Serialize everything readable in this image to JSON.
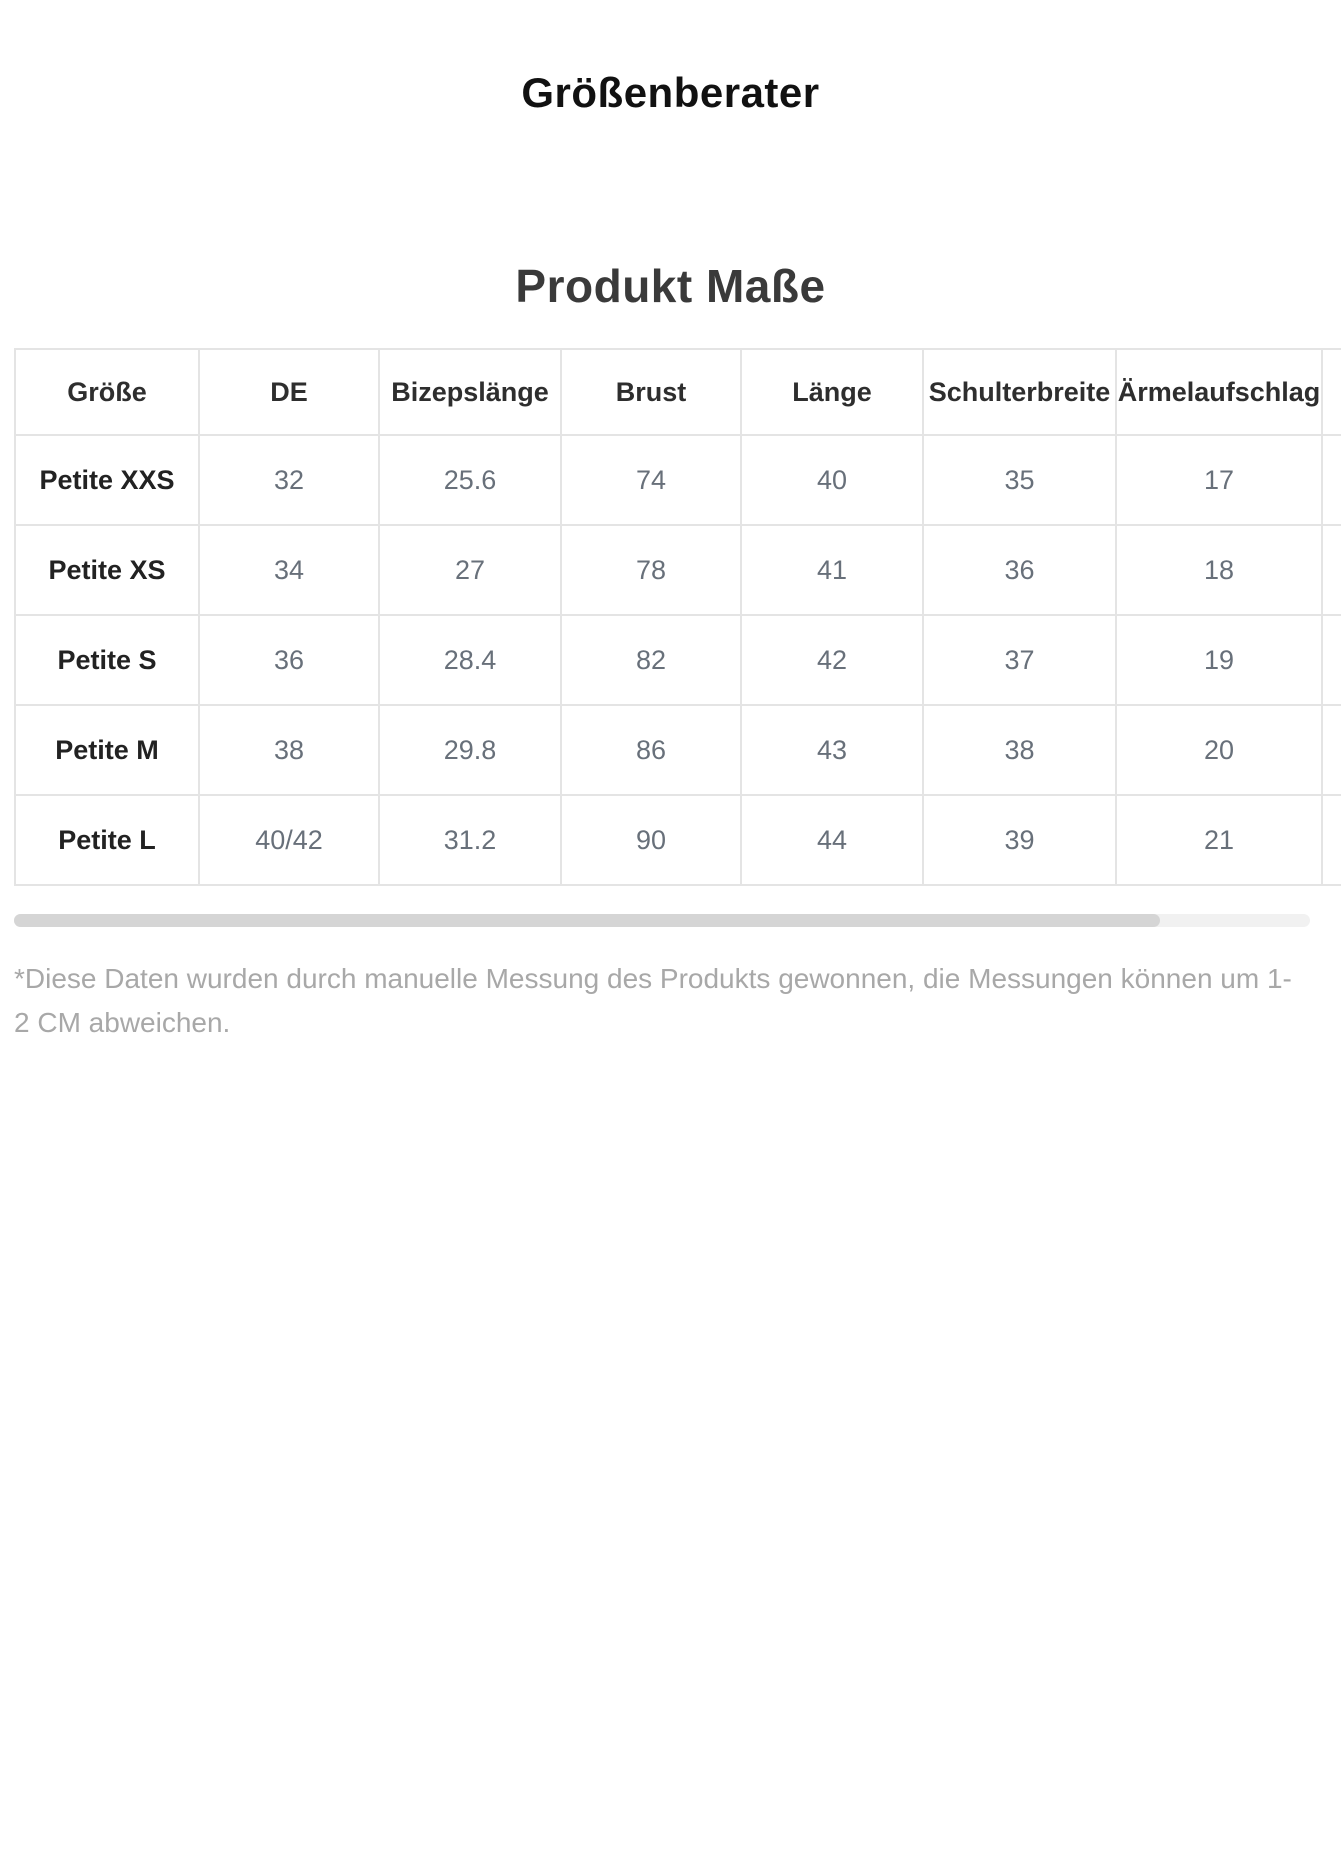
{
  "page": {
    "title": "Größenberater",
    "section_title": "Produkt Maße",
    "disclaimer": "*Diese Daten wurden durch manuelle Messung des Produkts gewonnen, die Messungen können um 1-2 CM abweichen."
  },
  "size_table": {
    "columns": [
      "Größe",
      "DE",
      "Bizepslänge",
      "Brust",
      "Länge",
      "Schulterbreite",
      "Ärmelaufschlag"
    ],
    "rows": [
      {
        "label": "Petite XXS",
        "values": [
          "32",
          "25.6",
          "74",
          "40",
          "35",
          "17"
        ]
      },
      {
        "label": "Petite XS",
        "values": [
          "34",
          "27",
          "78",
          "41",
          "36",
          "18"
        ]
      },
      {
        "label": "Petite S",
        "values": [
          "36",
          "28.4",
          "82",
          "42",
          "37",
          "19"
        ]
      },
      {
        "label": "Petite M",
        "values": [
          "38",
          "29.8",
          "86",
          "43",
          "38",
          "20"
        ]
      },
      {
        "label": "Petite L",
        "values": [
          "40/42",
          "31.2",
          "90",
          "44",
          "39",
          "21"
        ]
      }
    ]
  },
  "units_note": "CM",
  "colors": {
    "title_text": "#111111",
    "section_title_text": "#3a3a3a",
    "header_text": "#2e2e2e",
    "row_label_text": "#222222",
    "value_text": "#68707a",
    "table_border": "#e4e4e4",
    "scrollbar_track": "#f1f1f1",
    "scrollbar_thumb": "#d5d5d5",
    "disclaimer_text": "#a8a8a8",
    "background": "#ffffff"
  }
}
